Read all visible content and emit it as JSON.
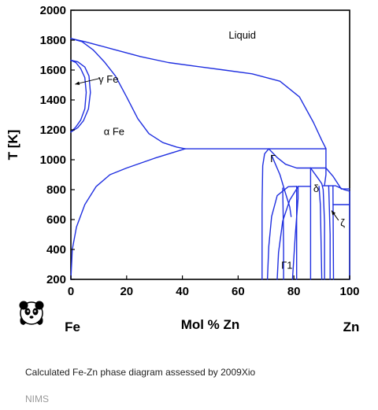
{
  "chart_data": {
    "type": "line",
    "title": "",
    "xlabel": "Mol % Zn",
    "ylabel": "T [K]",
    "xlim": [
      0,
      100
    ],
    "ylim": [
      200,
      2000
    ],
    "xticks": [
      "0",
      "20",
      "40",
      "60",
      "80",
      "100"
    ],
    "yticks": [
      "200",
      "400",
      "600",
      "800",
      "1000",
      "1200",
      "1400",
      "1600",
      "1800",
      "2000"
    ],
    "end_labels": {
      "left": "Fe",
      "right": "Zn"
    },
    "line_color": "#1f2fe0",
    "region_labels": [
      {
        "text": "Liquid",
        "x": 61.5,
        "y": 1810
      },
      {
        "text": "γ Fe",
        "x": 13.5,
        "y": 1515
      },
      {
        "text": "α Fe",
        "x": 15.5,
        "y": 1165
      },
      {
        "text": "Γ",
        "x": 72.5,
        "y": 985
      },
      {
        "text": "δ",
        "x": 88.0,
        "y": 785
      },
      {
        "text": "Γ1",
        "x": 77.5,
        "y": 270
      },
      {
        "text": "ζ",
        "x": 97.5,
        "y": 555
      }
    ],
    "series": [
      {
        "values": [
          [
            0,
            1811
          ],
          [
            5,
            1790
          ],
          [
            15,
            1740
          ],
          [
            25,
            1690
          ],
          [
            35,
            1650
          ],
          [
            45,
            1625
          ],
          [
            55,
            1600
          ],
          [
            65,
            1575
          ],
          [
            75,
            1525
          ],
          [
            82,
            1420
          ],
          [
            87,
            1250
          ],
          [
            90,
            1130
          ],
          [
            91.5,
            1075
          ]
        ]
      },
      {
        "values": [
          [
            0,
            1811
          ],
          [
            4,
            1790
          ],
          [
            8,
            1735
          ],
          [
            12,
            1655
          ],
          [
            16,
            1560
          ],
          [
            20,
            1420
          ],
          [
            24,
            1275
          ],
          [
            28,
            1175
          ],
          [
            33,
            1115
          ],
          [
            38,
            1085
          ],
          [
            41,
            1073
          ]
        ]
      },
      {
        "values": [
          [
            0,
            200
          ],
          [
            0.5,
            400
          ],
          [
            2,
            550
          ],
          [
            5,
            700
          ],
          [
            9,
            820
          ],
          [
            14,
            900
          ],
          [
            20,
            945
          ],
          [
            30,
            1010
          ],
          [
            41,
            1073
          ]
        ]
      },
      {
        "values": [
          [
            41,
            1073
          ],
          [
            91.5,
            1073
          ]
        ]
      },
      {
        "values": [
          [
            0,
            1665
          ],
          [
            2.5,
            1655
          ],
          [
            5,
            1620
          ],
          [
            6.5,
            1560
          ],
          [
            7,
            1450
          ],
          [
            6.3,
            1340
          ],
          [
            4.5,
            1260
          ],
          [
            2.5,
            1215
          ],
          [
            0,
            1185
          ]
        ]
      },
      {
        "values": [
          [
            0,
            1665
          ],
          [
            1.8,
            1650
          ],
          [
            3.5,
            1610
          ],
          [
            5,
            1550
          ],
          [
            5.5,
            1450
          ],
          [
            5,
            1340
          ],
          [
            3.5,
            1265
          ],
          [
            1.8,
            1220
          ],
          [
            0,
            1185
          ]
        ]
      },
      {
        "values": [
          [
            71,
            1073
          ],
          [
            69.5,
            1040
          ],
          [
            68.8,
            960
          ],
          [
            68.6,
            700
          ],
          [
            68.6,
            200
          ]
        ]
      },
      {
        "values": [
          [
            71,
            1073
          ],
          [
            74,
            1015
          ],
          [
            77,
            970
          ],
          [
            81,
            945
          ],
          [
            86,
            945
          ]
        ]
      },
      {
        "values": [
          [
            86,
            945
          ],
          [
            91.5,
            945
          ],
          [
            94,
            890
          ],
          [
            97,
            805
          ]
        ]
      },
      {
        "values": [
          [
            72,
            1030
          ],
          [
            75,
            900
          ],
          [
            77,
            775
          ],
          [
            78.5,
            685
          ],
          [
            79,
            620
          ]
        ]
      },
      {
        "values": [
          [
            76,
            810
          ],
          [
            76.2,
            600
          ],
          [
            76.3,
            400
          ],
          [
            76.3,
            200
          ]
        ]
      },
      {
        "values": [
          [
            70.5,
            200
          ],
          [
            71,
            420
          ],
          [
            72,
            620
          ],
          [
            74,
            760
          ],
          [
            78,
            820
          ],
          [
            81,
            822
          ]
        ]
      },
      {
        "values": [
          [
            74,
            200
          ],
          [
            74.5,
            380
          ],
          [
            76,
            590
          ],
          [
            78.5,
            730
          ],
          [
            81.5,
            820
          ]
        ]
      },
      {
        "values": [
          [
            79.5,
            200
          ],
          [
            80.5,
            500
          ],
          [
            81.5,
            740
          ],
          [
            81.5,
            822
          ],
          [
            86,
            822
          ]
        ]
      },
      {
        "values": [
          [
            81,
            822
          ],
          [
            81,
            200
          ]
        ]
      },
      {
        "values": [
          [
            86,
            945
          ],
          [
            86,
            200
          ]
        ]
      },
      {
        "values": [
          [
            86,
            945
          ],
          [
            88.5,
            880
          ],
          [
            90,
            840
          ],
          [
            90.5,
            800
          ],
          [
            91,
            580
          ],
          [
            91,
            200
          ]
        ]
      },
      {
        "values": [
          [
            89,
            822
          ],
          [
            89.5,
            700
          ],
          [
            90,
            200
          ]
        ]
      },
      {
        "values": [
          [
            91.5,
            1073
          ],
          [
            91.5,
            900
          ],
          [
            91,
            830
          ]
        ]
      },
      {
        "values": [
          [
            90.5,
            826
          ],
          [
            95,
            826
          ],
          [
            98,
            800
          ],
          [
            100,
            790
          ]
        ]
      },
      {
        "values": [
          [
            92.5,
            826
          ],
          [
            93,
            500
          ],
          [
            93,
            200
          ]
        ]
      },
      {
        "values": [
          [
            94,
            826
          ],
          [
            94.2,
            200
          ]
        ]
      },
      {
        "values": [
          [
            94,
            700
          ],
          [
            100,
            700
          ]
        ]
      },
      {
        "values": [
          [
            100,
            790
          ],
          [
            100,
            200
          ]
        ]
      },
      {
        "values": [
          [
            97,
            805
          ],
          [
            100,
            805
          ]
        ]
      }
    ],
    "arrows": [
      {
        "from": [
          10.5,
          1545
        ],
        "to": [
          1.5,
          1505
        ]
      },
      {
        "from": [
          96.0,
          595
        ],
        "to": [
          93.5,
          660
        ]
      }
    ]
  },
  "caption": "Calculated Fe-Zn phase diagram assessed by 2009Xio",
  "source_label": "NIMS",
  "logo_icon": "panda-logo-icon"
}
